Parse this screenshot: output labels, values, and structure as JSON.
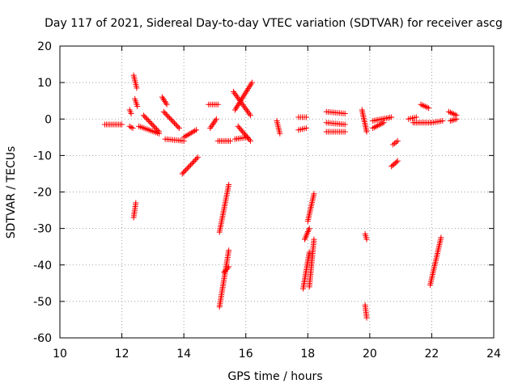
{
  "chart_data": {
    "type": "scatter",
    "title": "Day 117 of 2021, Sidereal Day-to-day VTEC variation (SDTVAR) for receiver ascg",
    "xlabel": "GPS time / hours",
    "ylabel": "SDTVAR / TECUs",
    "xlim": [
      10,
      24
    ],
    "ylim": [
      -60,
      20
    ],
    "xticks": [
      10,
      12,
      14,
      16,
      18,
      20,
      22,
      24
    ],
    "yticks": [
      20,
      10,
      0,
      -10,
      -20,
      -30,
      -40,
      -50,
      -60
    ],
    "grid": true,
    "marker": "+",
    "color": "#ff0000",
    "series": [
      {
        "name": "SDTVAR",
        "segments": [
          {
            "from": [
              11.45,
              -1.5
            ],
            "to": [
              12.0,
              -1.5
            ]
          },
          {
            "from": [
              12.25,
              2.5
            ],
            "to": [
              12.3,
              1.5
            ]
          },
          {
            "from": [
              12.25,
              -2.0
            ],
            "to": [
              12.35,
              -2.5
            ]
          },
          {
            "from": [
              12.38,
              12.0
            ],
            "to": [
              12.48,
              8.5
            ]
          },
          {
            "from": [
              12.42,
              5.5
            ],
            "to": [
              12.5,
              3.5
            ]
          },
          {
            "from": [
              12.45,
              -23.0
            ],
            "to": [
              12.38,
              -27.0
            ]
          },
          {
            "from": [
              12.55,
              -2.0
            ],
            "to": [
              13.2,
              -4.0
            ]
          },
          {
            "from": [
              12.7,
              1.0
            ],
            "to": [
              13.2,
              -3.5
            ]
          },
          {
            "from": [
              13.3,
              6.0
            ],
            "to": [
              13.45,
              4.0
            ]
          },
          {
            "from": [
              13.35,
              2.0
            ],
            "to": [
              13.85,
              -2.5
            ]
          },
          {
            "from": [
              13.4,
              -5.5
            ],
            "to": [
              14.0,
              -6.0
            ]
          },
          {
            "from": [
              13.95,
              -15.0
            ],
            "to": [
              14.45,
              -10.5
            ]
          },
          {
            "from": [
              14.0,
              -5.0
            ],
            "to": [
              14.4,
              -3.0
            ]
          },
          {
            "from": [
              14.8,
              4.0
            ],
            "to": [
              15.1,
              4.0
            ]
          },
          {
            "from": [
              14.85,
              -2.5
            ],
            "to": [
              15.05,
              0.0
            ]
          },
          {
            "from": [
              15.1,
              -6.0
            ],
            "to": [
              15.5,
              -6.0
            ]
          },
          {
            "from": [
              15.15,
              -31.0
            ],
            "to": [
              15.45,
              -18.0
            ]
          },
          {
            "from": [
              15.15,
              -51.5
            ],
            "to": [
              15.45,
              -36.0
            ]
          },
          {
            "from": [
              15.3,
              -42.0
            ],
            "to": [
              15.45,
              -40.5
            ]
          },
          {
            "from": [
              15.6,
              7.5
            ],
            "to": [
              16.15,
              1.0
            ]
          },
          {
            "from": [
              15.65,
              2.5
            ],
            "to": [
              16.2,
              10.0
            ]
          },
          {
            "from": [
              15.75,
              -2.0
            ],
            "to": [
              16.15,
              -6.0
            ]
          },
          {
            "from": [
              15.65,
              -5.5
            ],
            "to": [
              16.05,
              -5.0
            ]
          },
          {
            "from": [
              17.0,
              -0.5
            ],
            "to": [
              17.1,
              -4.0
            ]
          },
          {
            "from": [
              17.7,
              0.5
            ],
            "to": [
              17.95,
              0.5
            ]
          },
          {
            "from": [
              17.7,
              -3.0
            ],
            "to": [
              17.95,
              -2.5
            ]
          },
          {
            "from": [
              17.85,
              -46.5
            ],
            "to": [
              18.05,
              -36.5
            ]
          },
          {
            "from": [
              17.9,
              -33.0
            ],
            "to": [
              18.05,
              -30.0
            ]
          },
          {
            "from": [
              18.0,
              -28.0
            ],
            "to": [
              18.2,
              -20.5
            ]
          },
          {
            "from": [
              18.05,
              -46.0
            ],
            "to": [
              18.2,
              -33.0
            ]
          },
          {
            "from": [
              18.6,
              2.0
            ],
            "to": [
              19.2,
              1.5
            ]
          },
          {
            "from": [
              18.6,
              -1.0
            ],
            "to": [
              19.2,
              -1.5
            ]
          },
          {
            "from": [
              18.6,
              -3.5
            ],
            "to": [
              19.2,
              -3.5
            ]
          },
          {
            "from": [
              19.75,
              2.5
            ],
            "to": [
              19.9,
              -3.5
            ]
          },
          {
            "from": [
              19.85,
              -31.5
            ],
            "to": [
              19.9,
              -33.0
            ]
          },
          {
            "from": [
              19.85,
              -51.0
            ],
            "to": [
              19.9,
              -54.5
            ]
          },
          {
            "from": [
              20.1,
              -0.5
            ],
            "to": [
              20.7,
              0.5
            ]
          },
          {
            "from": [
              20.1,
              -2.5
            ],
            "to": [
              20.45,
              -1.0
            ]
          },
          {
            "from": [
              20.75,
              -7.0
            ],
            "to": [
              20.9,
              -6.0
            ]
          },
          {
            "from": [
              20.7,
              -13.0
            ],
            "to": [
              20.9,
              -11.5
            ]
          },
          {
            "from": [
              21.25,
              0.0
            ],
            "to": [
              21.5,
              0.5
            ]
          },
          {
            "from": [
              21.4,
              -1.0
            ],
            "to": [
              21.95,
              -1.0
            ]
          },
          {
            "from": [
              21.65,
              4.0
            ],
            "to": [
              21.9,
              3.0
            ]
          },
          {
            "from": [
              21.95,
              -45.5
            ],
            "to": [
              22.3,
              -32.5
            ]
          },
          {
            "from": [
              22.0,
              -1.0
            ],
            "to": [
              22.35,
              -0.5
            ]
          },
          {
            "from": [
              22.55,
              2.0
            ],
            "to": [
              22.8,
              1.0
            ]
          },
          {
            "from": [
              22.6,
              -0.5
            ],
            "to": [
              22.8,
              0.0
            ]
          }
        ]
      }
    ]
  }
}
